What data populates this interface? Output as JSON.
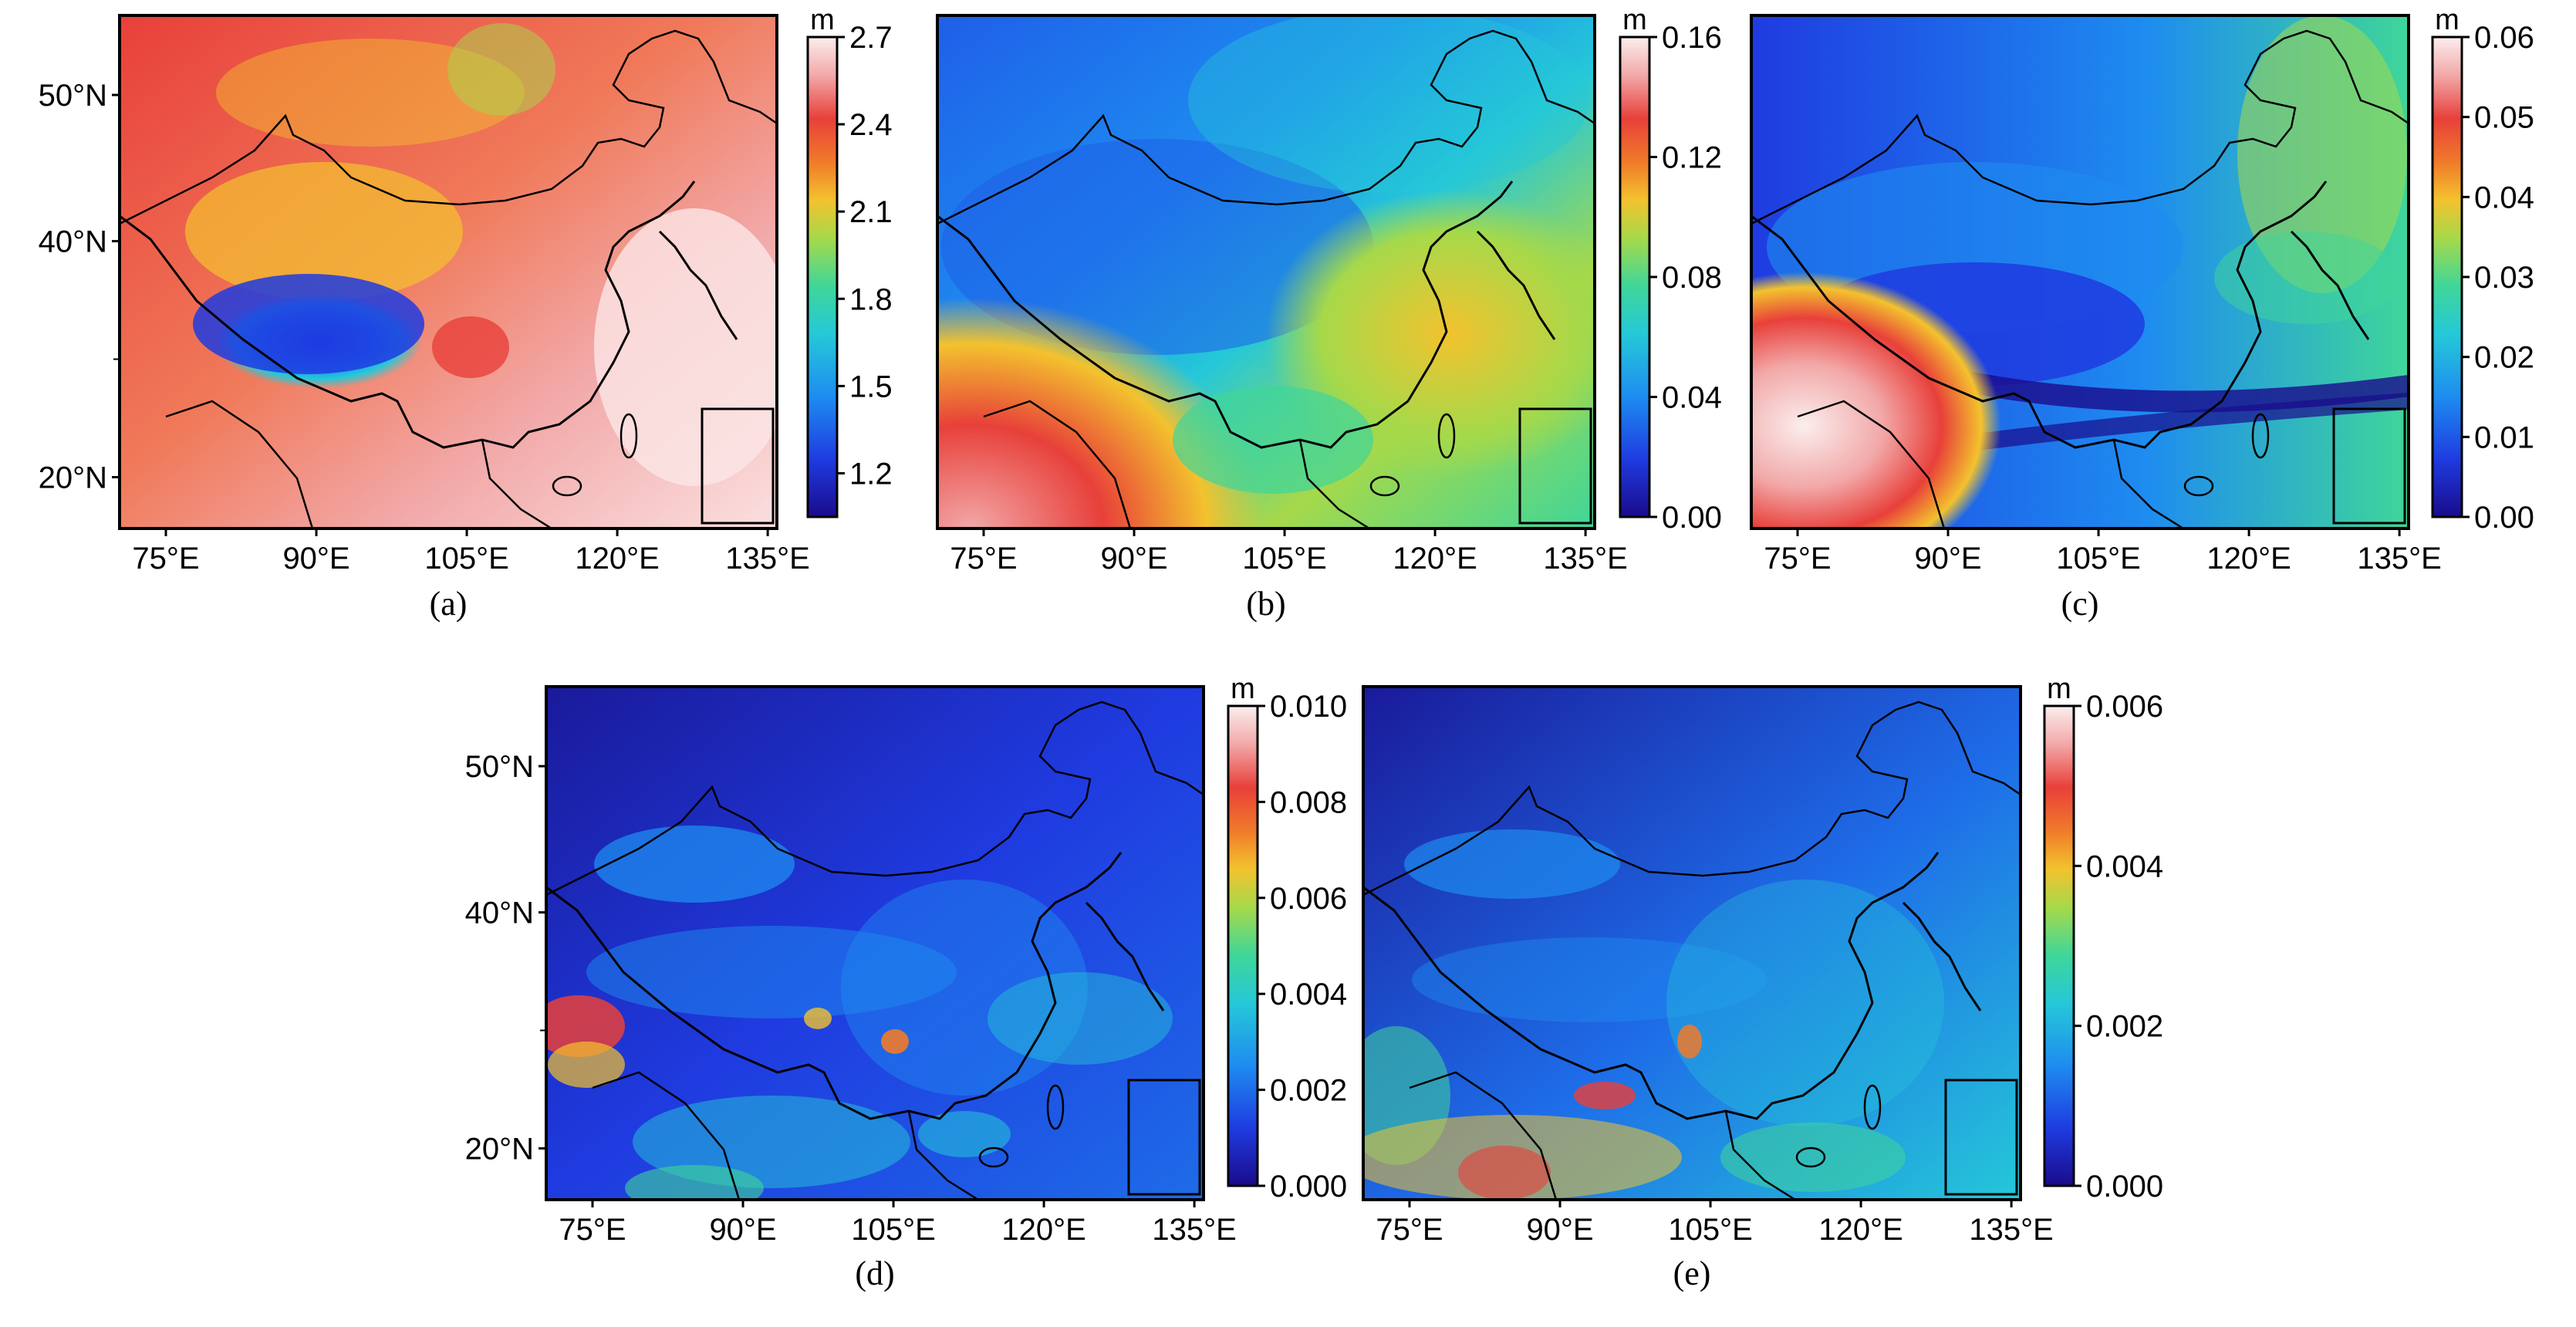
{
  "figure": {
    "panels": [
      {
        "id": "a",
        "caption": "(a)",
        "unit": "m",
        "colorbar_ticks": [
          "2.7",
          "2.4",
          "2.1",
          "1.8",
          "1.5",
          "1.2"
        ],
        "colorbar_range": [
          1.05,
          2.7
        ],
        "y_ticks": [
          "50°N",
          "40°N",
          "20°N"
        ],
        "x_ticks": [
          "75°E",
          "90°E",
          "105°E",
          "120°E",
          "135°E"
        ],
        "field_style": "warm-high"
      },
      {
        "id": "b",
        "caption": "(b)",
        "unit": "m",
        "colorbar_ticks": [
          "0.16",
          "0.12",
          "0.08",
          "0.04",
          "0.00"
        ],
        "colorbar_range": [
          0,
          0.16
        ],
        "y_ticks": [],
        "x_ticks": [
          "75°E",
          "90°E",
          "105°E",
          "120°E",
          "135°E"
        ],
        "field_style": "cool-mid"
      },
      {
        "id": "c",
        "caption": "(c)",
        "unit": "m",
        "colorbar_ticks": [
          "0.06",
          "0.05",
          "0.04",
          "0.03",
          "0.02",
          "0.01",
          "0.00"
        ],
        "colorbar_range": [
          0,
          0.06
        ],
        "y_ticks": [],
        "x_ticks": [
          "75°E",
          "90°E",
          "105°E",
          "120°E",
          "135°E"
        ],
        "field_style": "cool-low"
      },
      {
        "id": "d",
        "caption": "(d)",
        "unit": "m",
        "colorbar_ticks": [
          "0.010",
          "0.008",
          "0.006",
          "0.004",
          "0.002",
          "0.000"
        ],
        "colorbar_range": [
          0,
          0.01
        ],
        "y_ticks": [
          "50°N",
          "40°N",
          "20°N"
        ],
        "x_ticks": [
          "75°E",
          "90°E",
          "105°E",
          "120°E",
          "135°E"
        ],
        "field_style": "noisy-blue"
      },
      {
        "id": "e",
        "caption": "(e)",
        "unit": "m",
        "colorbar_ticks": [
          "0.006",
          "0.004",
          "0.002",
          "0.000"
        ],
        "colorbar_range": [
          0,
          0.006
        ],
        "y_ticks": [],
        "x_ticks": [
          "75°E",
          "90°E",
          "105°E",
          "120°E",
          "135°E"
        ],
        "field_style": "noisy-blue-2"
      }
    ],
    "colormap": [
      "#1a0b8c",
      "#1f3be0",
      "#1e8cf0",
      "#25c8d8",
      "#3fd69a",
      "#a6d94a",
      "#f3c22e",
      "#f07a2a",
      "#e8403a",
      "#f2a8a8",
      "#fbeeee"
    ]
  }
}
